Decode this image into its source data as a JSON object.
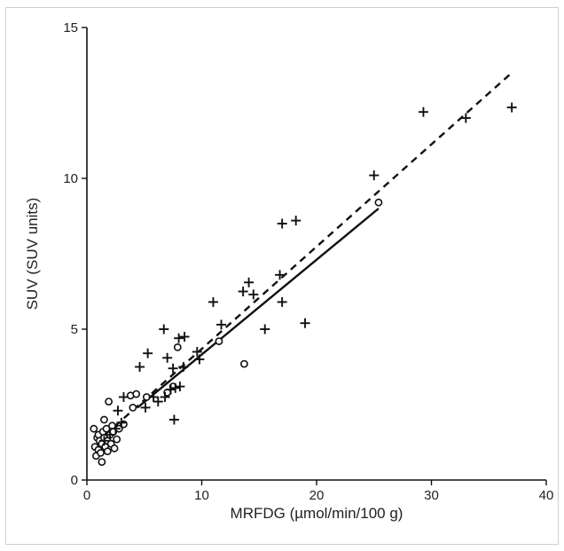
{
  "chart_data": {
    "type": "scatter",
    "xlabel": "MRFDG (µmol/min/100 g)",
    "ylabel": "SUV (SUV units)",
    "xlim": [
      0,
      40
    ],
    "ylim": [
      0,
      15
    ],
    "x_ticks": [
      "0",
      "10",
      "20",
      "30",
      "40"
    ],
    "y_ticks": [
      "0",
      "5",
      "10",
      "15"
    ],
    "grid": false,
    "series": [
      {
        "marker": "circle",
        "color": "#111111",
        "points": [
          [
            0.6,
            1.7
          ],
          [
            0.7,
            1.1
          ],
          [
            0.8,
            0.8
          ],
          [
            0.9,
            1.4
          ],
          [
            1.0,
            1.0
          ],
          [
            1.0,
            1.5
          ],
          [
            1.1,
            1.3
          ],
          [
            1.2,
            0.9
          ],
          [
            1.3,
            0.6
          ],
          [
            1.3,
            1.2
          ],
          [
            1.4,
            1.6
          ],
          [
            1.5,
            2.0
          ],
          [
            1.5,
            1.4
          ],
          [
            1.6,
            1.1
          ],
          [
            1.7,
            1.7
          ],
          [
            1.8,
            1.3
          ],
          [
            1.8,
            0.95
          ],
          [
            1.9,
            2.6
          ],
          [
            2.0,
            1.5
          ],
          [
            2.1,
            1.2
          ],
          [
            2.2,
            1.8
          ],
          [
            2.3,
            1.6
          ],
          [
            2.4,
            1.05
          ],
          [
            2.6,
            1.35
          ],
          [
            2.8,
            1.7
          ],
          [
            3.2,
            1.85
          ],
          [
            3.8,
            2.8
          ],
          [
            4.0,
            2.4
          ],
          [
            4.3,
            2.85
          ],
          [
            5.2,
            2.75
          ],
          [
            7.0,
            2.9
          ],
          [
            7.5,
            3.1
          ],
          [
            7.9,
            4.4
          ],
          [
            11.5,
            4.6
          ],
          [
            13.7,
            3.85
          ],
          [
            25.4,
            9.2
          ]
        ]
      },
      {
        "marker": "plus",
        "color": "#111111",
        "points": [
          [
            1.5,
            1.3
          ],
          [
            2.0,
            1.5
          ],
          [
            2.5,
            1.7
          ],
          [
            2.7,
            2.3
          ],
          [
            3.0,
            1.9
          ],
          [
            3.2,
            2.75
          ],
          [
            4.6,
            3.75
          ],
          [
            5.1,
            2.4
          ],
          [
            5.3,
            4.2
          ],
          [
            5.8,
            2.75
          ],
          [
            6.2,
            2.6
          ],
          [
            6.7,
            5.0
          ],
          [
            6.8,
            2.75
          ],
          [
            7.0,
            4.05
          ],
          [
            7.3,
            3.0
          ],
          [
            7.5,
            3.7
          ],
          [
            7.6,
            2.0
          ],
          [
            7.7,
            3.05
          ],
          [
            8.0,
            4.7
          ],
          [
            8.1,
            3.1
          ],
          [
            8.4,
            3.75
          ],
          [
            8.5,
            4.75
          ],
          [
            9.6,
            4.25
          ],
          [
            9.8,
            4.0
          ],
          [
            11.0,
            5.9
          ],
          [
            11.7,
            5.15
          ],
          [
            13.6,
            6.25
          ],
          [
            14.1,
            6.55
          ],
          [
            14.5,
            6.15
          ],
          [
            15.5,
            5.0
          ],
          [
            16.8,
            6.8
          ],
          [
            17.0,
            5.9
          ],
          [
            17.0,
            8.5
          ],
          [
            18.2,
            8.6
          ],
          [
            19.0,
            5.2
          ],
          [
            25.0,
            10.1
          ],
          [
            29.3,
            12.2
          ],
          [
            33.0,
            12.0
          ],
          [
            37.0,
            12.35
          ]
        ]
      }
    ],
    "fit_lines": [
      {
        "style": "solid",
        "x": [
          4.4,
          25.4
        ],
        "y": [
          2.4,
          9.0
        ]
      },
      {
        "style": "dashed",
        "x": [
          1.6,
          37.0
        ],
        "y": [
          1.5,
          13.5
        ]
      }
    ]
  }
}
